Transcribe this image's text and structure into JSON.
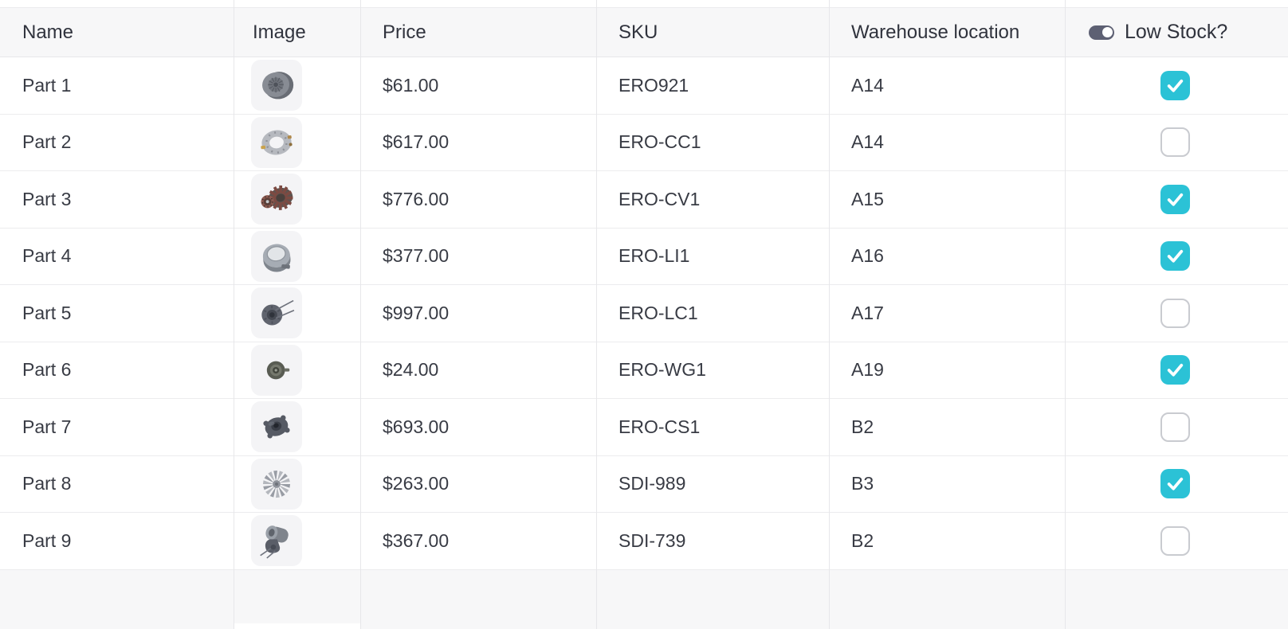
{
  "header": {
    "columns": [
      "Name",
      "Image",
      "Price",
      "SKU",
      "Warehouse location",
      "Low Stock?"
    ],
    "low_stock_field_type_icon": "toggle-icon"
  },
  "table": {
    "rows": [
      {
        "name": "Part 1",
        "image_desc": "gray pulley disc",
        "price": "$61.00",
        "sku": "ERO921",
        "location": "A14",
        "low_stock": true
      },
      {
        "name": "Part 2",
        "image_desc": "flat mounting ring plate",
        "price": "$617.00",
        "sku": "ERO-CC1",
        "location": "A14",
        "low_stock": false
      },
      {
        "name": "Part 3",
        "image_desc": "copper rotor armature",
        "price": "$776.00",
        "sku": "ERO-CV1",
        "location": "A15",
        "low_stock": true
      },
      {
        "name": "Part 4",
        "image_desc": "steel bushing ring",
        "price": "$377.00",
        "sku": "ERO-LI1",
        "location": "A16",
        "low_stock": true
      },
      {
        "name": "Part 5",
        "image_desc": "flange hub with long pins",
        "price": "$997.00",
        "sku": "ERO-LC1",
        "location": "A17",
        "low_stock": false
      },
      {
        "name": "Part 6",
        "image_desc": "small dark pulley wheel",
        "price": "$24.00",
        "sku": "ERO-WG1",
        "location": "A19",
        "low_stock": true
      },
      {
        "name": "Part 7",
        "image_desc": "dark pump housing",
        "price": "$693.00",
        "sku": "ERO-CS1",
        "location": "B2",
        "low_stock": false
      },
      {
        "name": "Part 8",
        "image_desc": "radial fan gear",
        "price": "$263.00",
        "sku": "SDI-989",
        "location": "B3",
        "low_stock": true
      },
      {
        "name": "Part 9",
        "image_desc": "motor bracket assembly",
        "price": "$367.00",
        "sku": "SDI-739",
        "location": "B2",
        "low_stock": false
      }
    ]
  },
  "colors": {
    "accent_teal": "#2bc2d6",
    "header_bg": "#f7f7f8",
    "row_bg": "#ffffff",
    "grid_border": "#e7e7ea",
    "text": "#383b44",
    "checkbox_unchecked_border": "#c9cbd0",
    "toggle_icon": "#5d6073"
  }
}
